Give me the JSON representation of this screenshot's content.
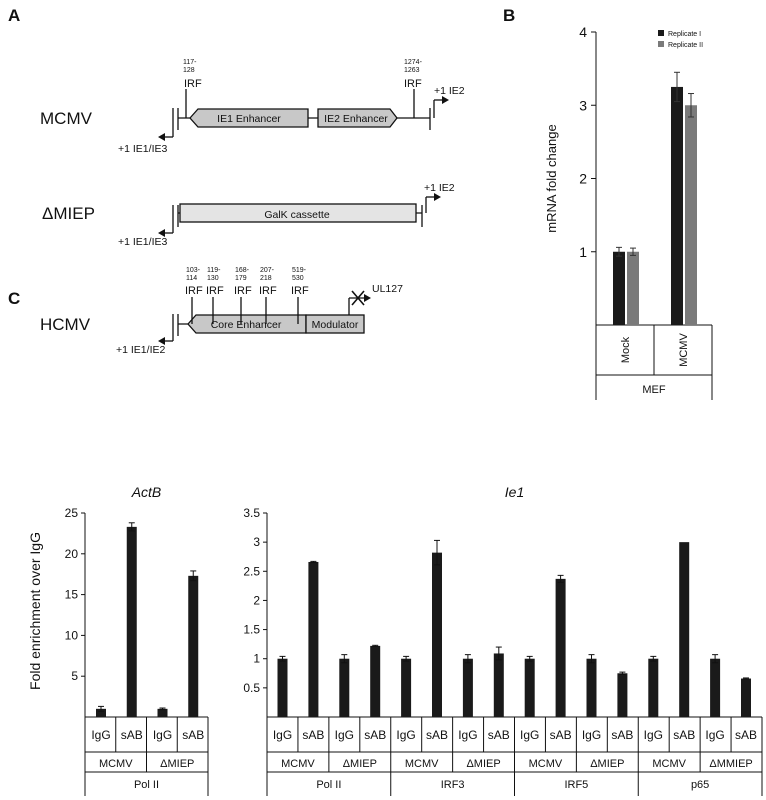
{
  "panels": {
    "a": "A",
    "b": "B",
    "c": "C"
  },
  "schematic": {
    "mcmv": {
      "name": "MCMV",
      "irf_left": {
        "pos": "117-\n128",
        "label": "IRF"
      },
      "irf_right": {
        "pos": "1274-\n1263",
        "label": "IRF"
      },
      "ie1_enhancer": "IE1 Enhancer",
      "ie2_enhancer": "IE2 Enhancer",
      "tss_left": "+1 IE1/IE3",
      "tss_right": "+1 IE2"
    },
    "dmiep": {
      "name": "ΔMIEP",
      "cassette": "GalK cassette",
      "tss_left": "+1 IE1/IE3",
      "tss_right": "+1 IE2"
    },
    "hcmv": {
      "name": "HCMV",
      "irfs": [
        {
          "pos": "103-\n114",
          "label": "IRF"
        },
        {
          "pos": "119-\n130",
          "label": "IRF"
        },
        {
          "pos": "168-\n179",
          "label": "IRF"
        },
        {
          "pos": "207-\n218",
          "label": "IRF"
        },
        {
          "pos": "519-\n530",
          "label": "IRF"
        }
      ],
      "core_enhancer": "Core Enhancer",
      "modulator": "Modulator",
      "tss_left": "+1 IE1/IE2",
      "tss_right": "UL127"
    }
  },
  "chart_data": [
    {
      "id": "B",
      "type": "bar",
      "ylabel": "mRNA fold change",
      "ylim": [
        0,
        4
      ],
      "yticks": [
        1,
        2,
        3,
        4
      ],
      "categories": [
        "Mock",
        "MCMV"
      ],
      "group_label": "MEF",
      "legend_placement": "top-right",
      "series": [
        {
          "name": "Replicate I",
          "color": "#1a1a1a",
          "values": [
            1.0,
            3.25
          ],
          "errors": [
            0.06,
            0.2
          ]
        },
        {
          "name": "Replicate II",
          "color": "#7a7a7a",
          "values": [
            1.0,
            3.0
          ],
          "errors": [
            0.05,
            0.16
          ]
        }
      ]
    },
    {
      "id": "C-ActB",
      "type": "bar",
      "title": "ActB",
      "ylabel": "Fold enrichment over IgG",
      "ylim": [
        0,
        25
      ],
      "yticks": [
        5,
        10,
        15,
        20,
        25
      ],
      "categories": [
        "IgG",
        "sAB",
        "IgG",
        "sAB"
      ],
      "values": [
        1.0,
        23.3,
        1.0,
        17.3
      ],
      "errors": [
        0.3,
        0.5,
        0.1,
        0.6
      ],
      "groups": [
        {
          "label": "MCMV",
          "span": 2
        },
        {
          "label": "ΔMIEP",
          "span": 2
        }
      ],
      "antibodies": [
        {
          "label": "Pol II",
          "span": 4
        }
      ]
    },
    {
      "id": "C-Ie1",
      "type": "bar",
      "title": "Ie1",
      "ylim": [
        0,
        3.5
      ],
      "yticks": [
        0.5,
        1,
        1.5,
        2,
        2.5,
        3,
        3.5
      ],
      "categories": [
        "IgG",
        "sAB",
        "IgG",
        "sAB",
        "IgG",
        "sAB",
        "IgG",
        "sAB",
        "IgG",
        "sAB",
        "IgG",
        "sAB",
        "IgG",
        "sAB",
        "IgG",
        "sAB"
      ],
      "values": [
        1.0,
        2.66,
        1.0,
        1.22,
        1.0,
        2.82,
        1.0,
        1.09,
        1.0,
        2.37,
        1.0,
        0.75,
        1.0,
        3.0,
        1.0,
        0.66
      ],
      "errors": [
        0.04,
        0.01,
        0.07,
        0.01,
        0.04,
        0.21,
        0.07,
        0.11,
        0.04,
        0.06,
        0.07,
        0.02,
        0.04,
        0.0,
        0.07,
        0.01
      ],
      "groups": [
        {
          "label": "MCMV",
          "span": 2
        },
        {
          "label": "ΔMIEP",
          "span": 2
        },
        {
          "label": "MCMV",
          "span": 2
        },
        {
          "label": "ΔMIEP",
          "span": 2
        },
        {
          "label": "MCMV",
          "span": 2
        },
        {
          "label": "ΔMIEP",
          "span": 2
        },
        {
          "label": "MCMV",
          "span": 2
        },
        {
          "label": "ΔMMIEP",
          "span": 2
        }
      ],
      "antibodies": [
        {
          "label": "Pol II",
          "span": 4
        },
        {
          "label": "IRF3",
          "span": 4
        },
        {
          "label": "IRF5",
          "span": 4
        },
        {
          "label": "p65",
          "span": 4
        }
      ]
    }
  ]
}
